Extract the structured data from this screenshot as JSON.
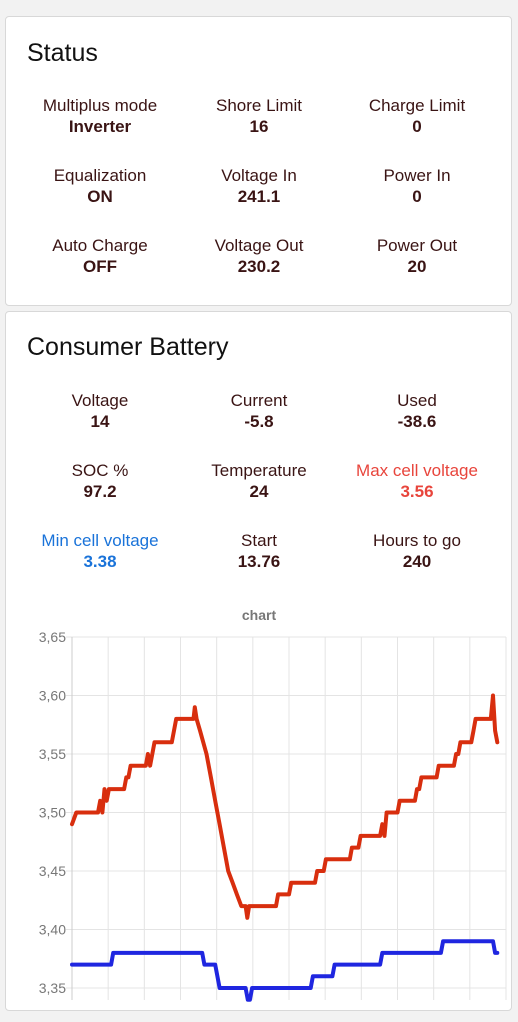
{
  "status": {
    "title": "Status",
    "items": [
      {
        "label": "Multiplus mode",
        "value": "Inverter"
      },
      {
        "label": "Shore Limit",
        "value": "16"
      },
      {
        "label": "Charge Limit",
        "value": "0"
      },
      {
        "label": "Equalization",
        "value": "ON"
      },
      {
        "label": "Voltage In",
        "value": "241.1"
      },
      {
        "label": "Power In",
        "value": "0"
      },
      {
        "label": "Auto Charge",
        "value": "OFF"
      },
      {
        "label": "Voltage Out",
        "value": "230.2"
      },
      {
        "label": "Power Out",
        "value": "20"
      }
    ]
  },
  "battery": {
    "title": "Consumer Battery",
    "items": [
      {
        "label": "Voltage",
        "value": "14"
      },
      {
        "label": "Current",
        "value": "-5.8"
      },
      {
        "label": "Used",
        "value": "-38.6"
      },
      {
        "label": "SOC %",
        "value": "97.2"
      },
      {
        "label": "Temperature",
        "value": "24"
      },
      {
        "label": "Max cell voltage",
        "value": "3.56"
      },
      {
        "label": "Min cell voltage",
        "value": "3.38"
      },
      {
        "label": "Start",
        "value": "13.76"
      },
      {
        "label": "Hours to go",
        "value": "240"
      }
    ]
  },
  "colors": {
    "text": "#3a1414",
    "max_cell": "#e8453c",
    "min_cell": "#1a73d9",
    "max_series": "#d82e0e",
    "min_series": "#1f26e0"
  },
  "chart_data": {
    "type": "line",
    "title": "chart",
    "yticks": [
      "3,65",
      "3,60",
      "3,55",
      "3,50",
      "3,45",
      "3,40",
      "3,35"
    ],
    "ylim": [
      3.35,
      3.65
    ],
    "xlim": [
      0,
      100
    ],
    "grid": true,
    "series": [
      {
        "color": "#d82e0e",
        "points": [
          [
            0,
            3.49
          ],
          [
            1,
            3.5
          ],
          [
            6,
            3.5
          ],
          [
            6.5,
            3.51
          ],
          [
            7,
            3.5
          ],
          [
            7.5,
            3.52
          ],
          [
            8,
            3.51
          ],
          [
            8.5,
            3.52
          ],
          [
            12,
            3.52
          ],
          [
            12.5,
            3.53
          ],
          [
            13,
            3.53
          ],
          [
            13.5,
            3.54
          ],
          [
            17,
            3.54
          ],
          [
            17.5,
            3.55
          ],
          [
            18,
            3.54
          ],
          [
            18.5,
            3.55
          ],
          [
            19,
            3.56
          ],
          [
            23,
            3.56
          ],
          [
            23.5,
            3.57
          ],
          [
            24,
            3.58
          ],
          [
            28,
            3.58
          ],
          [
            28.3,
            3.59
          ],
          [
            28.7,
            3.58
          ],
          [
            29.5,
            3.57
          ],
          [
            31,
            3.55
          ],
          [
            32,
            3.53
          ],
          [
            33,
            3.51
          ],
          [
            34,
            3.49
          ],
          [
            35,
            3.47
          ],
          [
            36,
            3.45
          ],
          [
            37,
            3.44
          ],
          [
            38,
            3.43
          ],
          [
            39,
            3.42
          ],
          [
            40,
            3.42
          ],
          [
            40.4,
            3.41
          ],
          [
            40.8,
            3.42
          ],
          [
            47,
            3.42
          ],
          [
            47.5,
            3.43
          ],
          [
            50,
            3.43
          ],
          [
            50.5,
            3.44
          ],
          [
            56,
            3.44
          ],
          [
            56.5,
            3.45
          ],
          [
            58,
            3.45
          ],
          [
            58.5,
            3.46
          ],
          [
            64,
            3.46
          ],
          [
            64.5,
            3.47
          ],
          [
            66,
            3.47
          ],
          [
            66.5,
            3.48
          ],
          [
            71,
            3.48
          ],
          [
            71.5,
            3.49
          ],
          [
            72,
            3.48
          ],
          [
            72.5,
            3.5
          ],
          [
            75,
            3.5
          ],
          [
            75.5,
            3.51
          ],
          [
            79,
            3.51
          ],
          [
            79.5,
            3.52
          ],
          [
            80,
            3.52
          ],
          [
            80.5,
            3.53
          ],
          [
            84,
            3.53
          ],
          [
            84.5,
            3.54
          ],
          [
            88,
            3.54
          ],
          [
            88.5,
            3.55
          ],
          [
            89,
            3.55
          ],
          [
            89.5,
            3.56
          ],
          [
            92,
            3.56
          ],
          [
            92.5,
            3.57
          ],
          [
            93,
            3.58
          ],
          [
            96.5,
            3.58
          ],
          [
            97,
            3.6
          ],
          [
            97.5,
            3.57
          ],
          [
            98,
            3.56
          ]
        ]
      },
      {
        "color": "#1f26e0",
        "points": [
          [
            0,
            3.37
          ],
          [
            9,
            3.37
          ],
          [
            9.5,
            3.38
          ],
          [
            30,
            3.38
          ],
          [
            30.5,
            3.37
          ],
          [
            33,
            3.37
          ],
          [
            33.5,
            3.36
          ],
          [
            34,
            3.35
          ],
          [
            40,
            3.35
          ],
          [
            40.5,
            3.34
          ],
          [
            41,
            3.34
          ],
          [
            41.5,
            3.35
          ],
          [
            55,
            3.35
          ],
          [
            55.5,
            3.36
          ],
          [
            60,
            3.36
          ],
          [
            60.5,
            3.37
          ],
          [
            71,
            3.37
          ],
          [
            71.5,
            3.38
          ],
          [
            85,
            3.38
          ],
          [
            85.5,
            3.39
          ],
          [
            97,
            3.39
          ],
          [
            97.5,
            3.38
          ],
          [
            98,
            3.38
          ]
        ]
      }
    ]
  }
}
